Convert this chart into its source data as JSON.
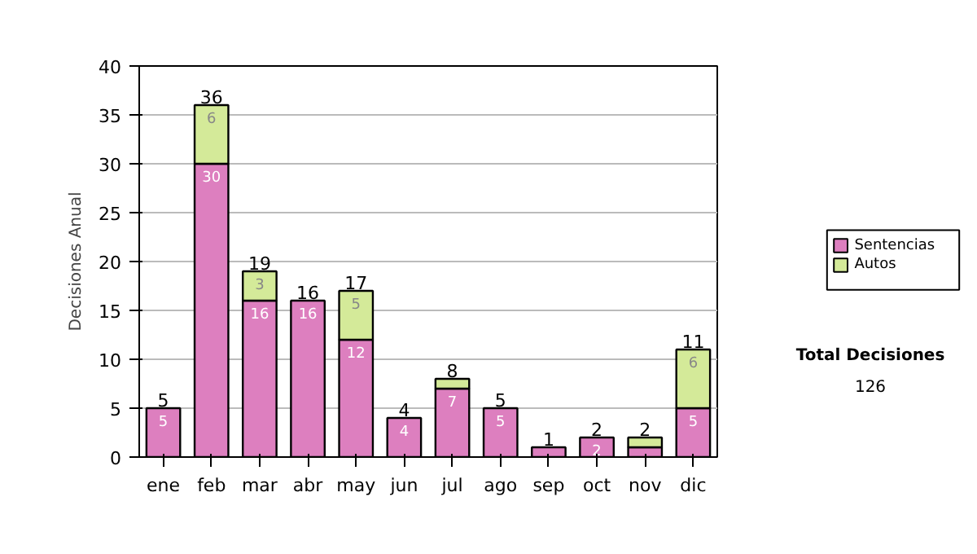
{
  "chart_data": {
    "type": "bar",
    "stacked": true,
    "ylabel": "Decisiones Anual",
    "categories": [
      "ene",
      "feb",
      "mar",
      "abr",
      "may",
      "jun",
      "jul",
      "ago",
      "sep",
      "oct",
      "nov",
      "dic"
    ],
    "series": [
      {
        "name": "Sentencias",
        "color": "#dd7fbf",
        "values": [
          5,
          30,
          16,
          16,
          12,
          4,
          7,
          5,
          1,
          2,
          1,
          5
        ],
        "value_labels": [
          "5",
          "30",
          "16",
          "16",
          "12",
          "4",
          "7",
          "5",
          null,
          "2",
          null,
          "5"
        ]
      },
      {
        "name": "Autos",
        "color": "#d4ea99",
        "values": [
          null,
          6,
          3,
          null,
          5,
          null,
          1,
          null,
          null,
          null,
          1,
          6
        ],
        "value_labels": [
          null,
          "6",
          "3",
          null,
          "5",
          null,
          null,
          null,
          null,
          null,
          null,
          "6"
        ]
      }
    ],
    "totals": [
      "5",
      "36",
      "19",
      "16",
      "17",
      "4",
      "8",
      "5",
      "1",
      "2",
      "2",
      "11"
    ],
    "ylim": [
      0,
      40
    ],
    "yticks": [
      0,
      5,
      10,
      15,
      20,
      25,
      30,
      35,
      40
    ],
    "grid": "y",
    "legend": "right",
    "annotations": [
      "Total Decisiones",
      "126"
    ]
  }
}
